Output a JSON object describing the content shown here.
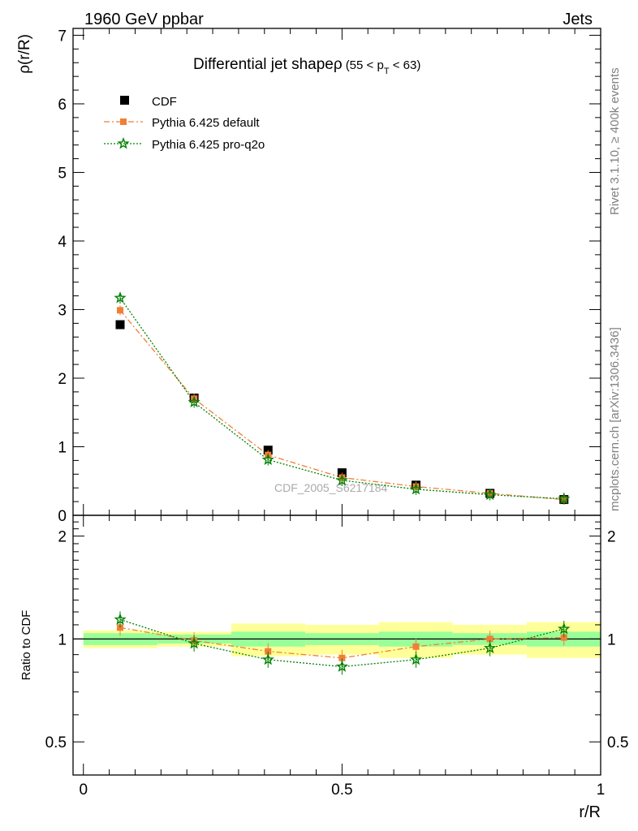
{
  "header": {
    "left": "1960 GeV ppbar",
    "right": "Jets"
  },
  "side_labels": {
    "rivet": "Rivet 3.1.10, ≥ 400k events",
    "mcplots": "mcplots.cern.ch [arXiv:1306.3436]"
  },
  "colors": {
    "data": "#000000",
    "default": "#f07f35",
    "proq2o": "#008000",
    "band_inner": "#99ff99",
    "band_outer": "#ffff99"
  },
  "chart_data": [
    {
      "type": "scatter",
      "title": "Differential jet shapeρ",
      "title_suffix": "(55 < p",
      "title_sub": "T",
      "title_end": " < 63)",
      "ylabel": "ρ(r/R)",
      "watermark": "CDF_2005_S6217184",
      "ylim": [
        0,
        7.1
      ],
      "yticks": [
        0,
        1,
        2,
        3,
        4,
        5,
        6,
        7
      ],
      "xlim": [
        -0.02,
        1.0
      ],
      "legend_placement": "top-left",
      "x": [
        0.071,
        0.214,
        0.357,
        0.5,
        0.643,
        0.786,
        0.929
      ],
      "series": [
        {
          "name": "CDF",
          "values": [
            2.78,
            1.71,
            0.95,
            0.62,
            0.44,
            0.32,
            0.23
          ]
        },
        {
          "name": "Pythia 6.425 default",
          "values": [
            2.99,
            1.7,
            0.88,
            0.55,
            0.42,
            0.32,
            0.23
          ]
        },
        {
          "name": "Pythia 6.425 pro-q2o",
          "values": [
            3.17,
            1.65,
            0.81,
            0.51,
            0.38,
            0.3,
            0.24
          ]
        }
      ]
    },
    {
      "type": "scatter",
      "ylabel": "Ratio to CDF",
      "xlabel": "r/R",
      "ylim": [
        0.4,
        2.3
      ],
      "yscale": "log",
      "yticks": [
        0.5,
        1,
        2
      ],
      "xlim": [
        -0.02,
        1.0
      ],
      "xticks": [
        0,
        0.5,
        1
      ],
      "x": [
        0.071,
        0.214,
        0.357,
        0.5,
        0.643,
        0.786,
        0.929
      ],
      "bins": [
        [
          0.0,
          0.143
        ],
        [
          0.143,
          0.286
        ],
        [
          0.286,
          0.429
        ],
        [
          0.429,
          0.571
        ],
        [
          0.571,
          0.714
        ],
        [
          0.714,
          0.857
        ],
        [
          0.857,
          1.0
        ]
      ],
      "band_inner": [
        0.04,
        0.03,
        0.05,
        0.04,
        0.05,
        0.04,
        0.05
      ],
      "band_outer": [
        0.06,
        0.05,
        0.11,
        0.1,
        0.12,
        0.1,
        0.12
      ],
      "series": [
        {
          "name": "Pythia 6.425 default",
          "values": [
            1.08,
            0.99,
            0.92,
            0.88,
            0.95,
            1.0,
            1.01
          ]
        },
        {
          "name": "Pythia 6.425 pro-q2o",
          "values": [
            1.14,
            0.97,
            0.87,
            0.83,
            0.87,
            0.94,
            1.07
          ]
        }
      ]
    }
  ]
}
